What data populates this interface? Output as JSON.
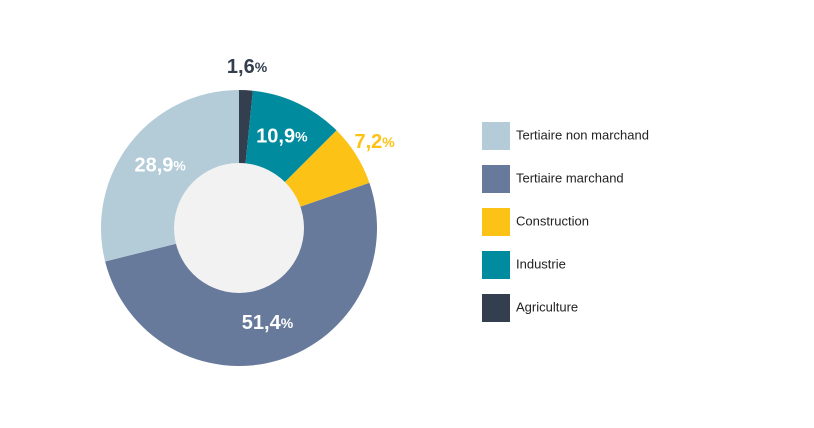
{
  "chart_data": {
    "type": "donut",
    "categories": [
      "Tertiaire non marchand",
      "Tertiaire marchand",
      "Construction",
      "Industrie",
      "Agriculture"
    ],
    "values": [
      28.9,
      51.4,
      7.2,
      10.9,
      1.6
    ],
    "value_labels": [
      "28,9%",
      "51,4%",
      "7,2%",
      "10,9%",
      "1,6%"
    ],
    "colors": [
      "#b4cbd8",
      "#687a9b",
      "#fcc216",
      "#008b9e",
      "#333e4f"
    ]
  }
}
